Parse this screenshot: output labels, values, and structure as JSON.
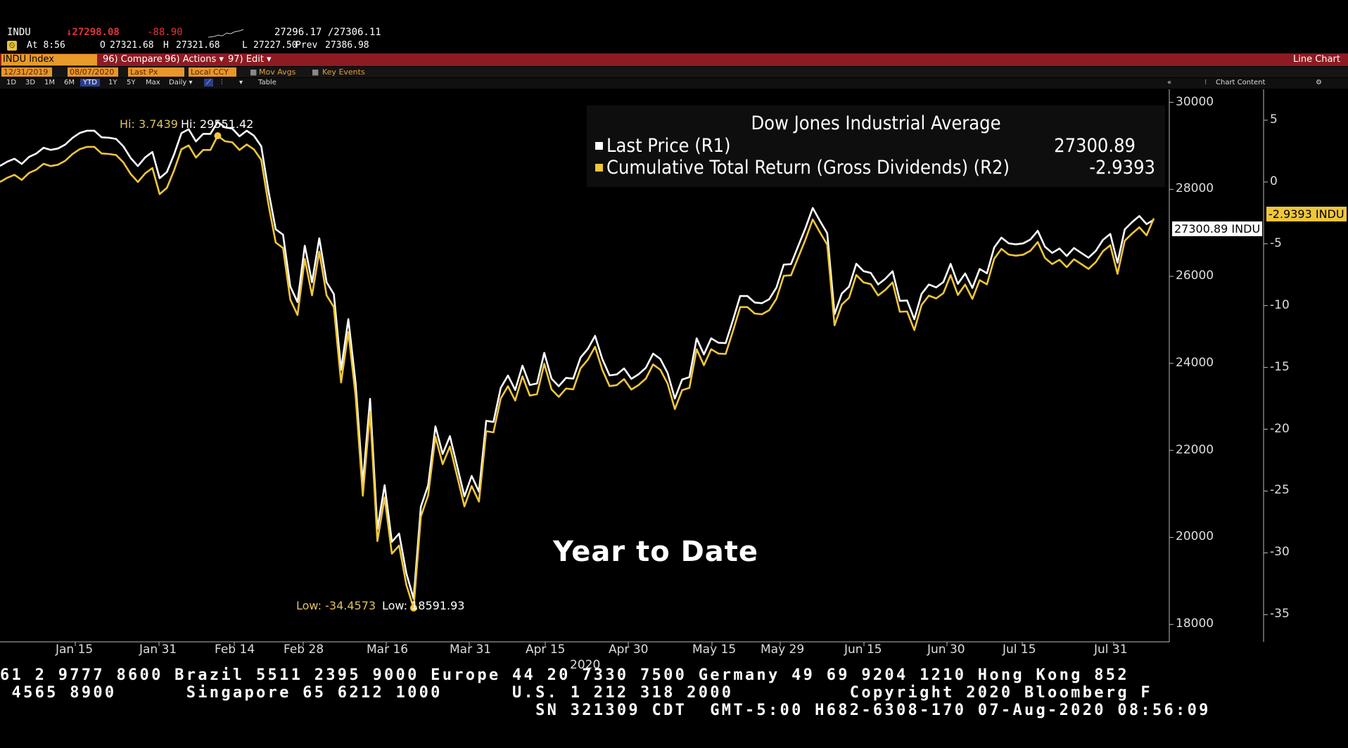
{
  "quote": {
    "ticker": "INDU",
    "last": "↓27298.08",
    "change": "-88.90",
    "bid_ask": "27296.17 /27306.11",
    "time": "At 8:56",
    "open_label": "O",
    "open": "27321.68",
    "high_label": "H",
    "high": "27321.68",
    "low_label": "L",
    "low": "27227.50",
    "prev_label": "Prev",
    "prev": "27386.98"
  },
  "toolbar": {
    "security": "INDU Index",
    "compare": "96) Compare",
    "actions": "96) Actions ▾",
    "edit": "97) Edit ▾",
    "chart_type": "Line Chart"
  },
  "range_bar": {
    "start_date": "12/31/2019",
    "end_date": "08/07/2020",
    "field": "Last Px",
    "currency": "Local CCY",
    "mov_avgs": "Mov Avgs",
    "key_events": "Key Events"
  },
  "period_bar": {
    "periods": [
      "1D",
      "3D",
      "1M",
      "6M",
      "YTD",
      "1Y",
      "5Y",
      "Max"
    ],
    "selected": "YTD",
    "frequency": "Daily ▾",
    "table": "Table",
    "chart_content": "Chart Content"
  },
  "legend": {
    "title": "Dow Jones Industrial Average",
    "series1": "Last Price  (R1)",
    "series1_value": "27300.89",
    "series2": "Cumulative Total Return (Gross Dividends)  (R2)",
    "series2_value": "-2.9393"
  },
  "annotations": {
    "hi_return": "Hi: 3.7439",
    "hi_price": "Hi: 29551.42",
    "low_return": "Low: -34.4573",
    "low_price": "Low: 18591.93",
    "overlay_text": "Year to Date",
    "price_tag": "27300.89 INDU",
    "return_tag": "-2.9393 INDU"
  },
  "colors": {
    "price_line": "#ffffff",
    "return_line": "#f0c63a",
    "toolbar_red": "#8e1b23",
    "orange": "#e89a2b"
  },
  "chart_data": {
    "type": "line",
    "title": "Dow Jones Industrial Average",
    "x_tick_labels": [
      "Jan 15",
      "Jan 31",
      "Feb 14",
      "Feb 28",
      "Mar 16",
      "Mar 31",
      "Apr 15",
      "Apr 30",
      "May 15",
      "May 29",
      "Jun 15",
      "Jun 30",
      "Jul 15",
      "Jul 31"
    ],
    "x_year_label": "2020",
    "y_right1_ticks": [
      "30000",
      "28000",
      "26000",
      "24000",
      "22000",
      "20000",
      "18000"
    ],
    "y_right1_range": [
      17600,
      30300
    ],
    "y_right2_ticks": [
      "5",
      "0",
      "-5",
      "-10",
      "-15",
      "-20",
      "-25",
      "-30",
      "-35"
    ],
    "y_right2_range": [
      -37.2,
      7.5
    ],
    "series": [
      {
        "name": "Last Price (R1)",
        "axis": "R1",
        "values": [
          28538,
          28635,
          28703,
          28584,
          28745,
          28823,
          28956,
          28907,
          28939,
          29030,
          29184,
          29297,
          29348,
          29348,
          29196,
          29186,
          29160,
          28990,
          28722,
          28535,
          28734,
          28859,
          28256,
          28399,
          28807,
          29291,
          29380,
          29102,
          29276,
          29276,
          29551,
          29424,
          29398,
          29220,
          29348,
          29232,
          28992,
          27961,
          27082,
          26958,
          25766,
          25409,
          26703,
          25864,
          26875,
          25865,
          25594,
          23851,
          25018,
          23553,
          21237,
          23185,
          20189,
          21200,
          19899,
          20088,
          19174,
          18592,
          20704,
          21200,
          22552,
          21917,
          22327,
          21636,
          20943,
          21413,
          21053,
          22680,
          22654,
          23434,
          23720,
          23390,
          23949,
          23504,
          23538,
          24242,
          23650,
          23475,
          23665,
          23650,
          24134,
          24331,
          24633,
          24101,
          23724,
          23747,
          23884,
          23644,
          23750,
          23898,
          24225,
          24102,
          23781,
          23192,
          23628,
          23684,
          24576,
          24206,
          24575,
          24475,
          24466,
          24995,
          25549,
          25548,
          25400,
          25383,
          25476,
          25742,
          26270,
          26281,
          26700,
          27110,
          27572,
          27272,
          26990,
          25129,
          25605,
          25763,
          26290,
          26120,
          26080,
          25815,
          25945,
          26119,
          25438,
          25447,
          25015,
          25596,
          25813,
          25746,
          25870,
          26287,
          25827,
          26067,
          25734,
          26170,
          26071,
          26663,
          26890,
          26760,
          26735,
          26758,
          26848,
          27048,
          26681,
          26540,
          26641,
          26469,
          26652,
          26539,
          26428,
          26585,
          26840,
          26974,
          26314,
          27080,
          27246,
          27387,
          27201,
          27300
        ],
        "start_index": 0
      },
      {
        "name": "Cumulative Total Return (Gross Dividends) (R2)",
        "axis": "R2",
        "values": [
          0.0,
          0.34,
          0.58,
          0.17,
          0.73,
          1.0,
          1.47,
          1.29,
          1.4,
          1.72,
          2.26,
          2.66,
          2.84,
          2.84,
          2.31,
          2.27,
          2.18,
          1.59,
          0.65,
          0.0,
          0.69,
          1.13,
          -0.98,
          -0.48,
          0.95,
          2.65,
          2.96,
          1.98,
          2.59,
          2.59,
          3.74,
          3.3,
          3.21,
          2.59,
          3.03,
          2.63,
          1.79,
          -1.82,
          -4.9,
          -5.34,
          -9.51,
          -10.76,
          -6.23,
          -9.17,
          -5.63,
          -9.17,
          -10.12,
          -16.22,
          -12.13,
          -17.27,
          -25.38,
          -18.57,
          -29.05,
          -25.52,
          -30.07,
          -29.41,
          -32.6,
          -34.46,
          -27.07,
          -25.33,
          -20.61,
          -22.83,
          -21.4,
          -23.81,
          -26.24,
          -24.59,
          -25.85,
          -20.16,
          -20.25,
          -17.52,
          -16.52,
          -17.68,
          -15.72,
          -17.28,
          -17.16,
          -14.7,
          -16.77,
          -17.38,
          -16.71,
          -16.77,
          -15.07,
          -14.38,
          -13.33,
          -15.19,
          -16.51,
          -16.43,
          -15.95,
          -16.79,
          -16.42,
          -15.9,
          -14.76,
          -15.19,
          -16.31,
          -18.37,
          -16.84,
          -16.65,
          -13.53,
          -14.82,
          -13.53,
          -13.88,
          -13.91,
          -12.06,
          -10.12,
          -10.12,
          -10.64,
          -10.7,
          -10.37,
          -9.44,
          -7.59,
          -7.55,
          -6.09,
          -4.65,
          -3.03,
          -4.08,
          -5.07,
          -11.59,
          -9.92,
          -9.37,
          -7.52,
          -8.12,
          -8.26,
          -9.18,
          -8.73,
          -8.12,
          -10.5,
          -10.47,
          -11.98,
          -9.95,
          -9.19,
          -9.42,
          -8.99,
          -7.53,
          -9.14,
          -8.3,
          -9.46,
          -7.94,
          -8.28,
          -6.21,
          -5.41,
          -5.87,
          -5.96,
          -5.88,
          -5.56,
          -4.86,
          -6.15,
          -6.64,
          -6.29,
          -6.89,
          -6.25,
          -6.64,
          -7.03,
          -6.48,
          -5.59,
          -5.12,
          -7.43,
          -4.75,
          -4.17,
          -3.67,
          -4.32,
          -2.94
        ]
      }
    ]
  },
  "footer": {
    "line1": "61 2 9777 8600 Brazil 5511 2395 9000 Europe 44 20 7330 7500 Germany 49 69 9204 1210 Hong Kong 852",
    "line2": " 4565 8900      Singapore 65 6212 1000      U.S. 1 212 318 2000          Copyright 2020 Bloomberg F",
    "line3": "                                              SN 321309 CDT  GMT-5:00 H682-6308-170 07-Aug-2020 08:56:09"
  }
}
